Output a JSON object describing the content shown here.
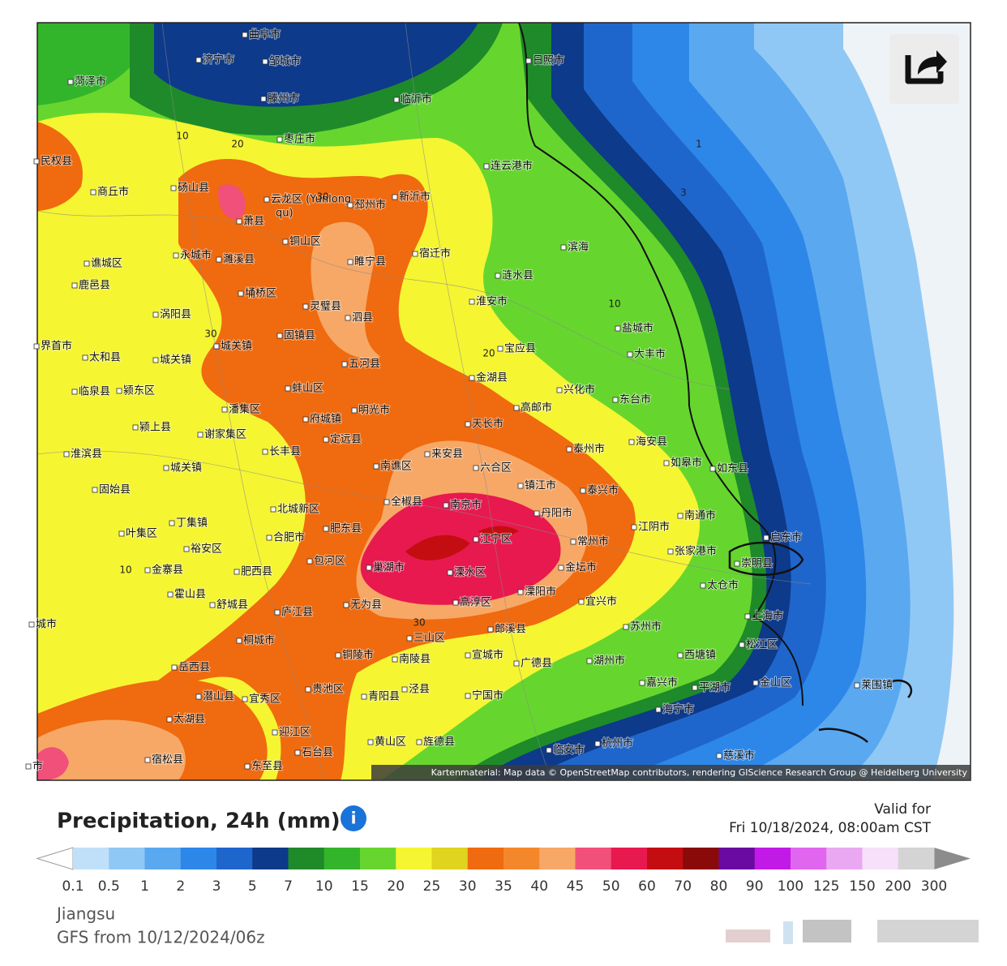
{
  "map": {
    "cities": [
      "曲阜市",
      "济宁市",
      "邹城市",
      "菏泽市",
      "滕州市",
      "临沂市",
      "日照市",
      "枣庄市",
      "民权县",
      "连云港市",
      "商丘市",
      "砀山县",
      "云龙区 (Yunlong",
      "qu)",
      "萧县",
      "邳州市",
      "新沂市",
      "铜山区",
      "永城市",
      "濉溪县",
      "睢宁县",
      "宿迁市",
      "谯城区",
      "鹿邑县",
      "涟水县",
      "滨海",
      "埇桥区",
      "灵璧县",
      "泗县",
      "淮安市",
      "盐城市",
      "涡阳县",
      "固镇县",
      "界首市",
      "太和县",
      "城关镇",
      "城关镇",
      "五河县",
      "宝应县",
      "大丰市",
      "金湖县",
      "临泉县",
      "颍东区",
      "蚌山区",
      "明光市",
      "兴化市",
      "东台市",
      "潘集区",
      "府城镇",
      "天长市",
      "高邮市",
      "颍上县",
      "谢家集区",
      "定远县",
      "泰州市",
      "海安县",
      "淮滨县",
      "长丰县",
      "来安县",
      "如皋市",
      "南谯区",
      "六合区",
      "如东县",
      "城关镇",
      "固始县",
      "镇江市",
      "泰兴市",
      "全椒县",
      "南京市",
      "北城新区",
      "丹阳市",
      "南通市",
      "叶集区",
      "丁集镇",
      "合肥市",
      "肥东县",
      "江宁区",
      "常州市",
      "江阴市",
      "启东市",
      "裕安区",
      "包河区",
      "巢湖市",
      "张家港市",
      "金坛市",
      "崇明县",
      "金寨县",
      "肥西县",
      "溧水区",
      "太仓市",
      "霍山县",
      "舒城县",
      "庐江县",
      "无为县",
      "高淳区",
      "溧阳市",
      "宜兴市",
      "上海市",
      "城市",
      "苏州市",
      "郎溪县",
      "桐城市",
      "三山区",
      "松江区",
      "宣城市",
      "铜陵市",
      "湖州市",
      "广德县",
      "南陵县",
      "嘉兴市",
      "岳西县",
      "西塘镇",
      "平湖市",
      "金山区",
      "莱围镇",
      "贵池区",
      "宜秀区",
      "潜山县",
      "青阳县",
      "泾县",
      "宁国市",
      "海宁市",
      "太湖县",
      "迎江区",
      "黄山区",
      "旌德县",
      "临安市",
      "杭州市",
      "宿松县",
      "东至县",
      "石台县",
      "慈溪市",
      "市"
    ],
    "contour_labels": [
      "10",
      "20",
      "30",
      "1",
      "3",
      "10",
      "20",
      "30",
      "10",
      "30"
    ],
    "attribution": "Kartenmaterial: Map data © OpenStreetMap contributors, rendering GIScience Research Group @ Heidelberg University"
  },
  "legend": {
    "title": "Precipitation, 24h (mm)",
    "valid_label": "Valid for",
    "valid_time": "Fri 10/18/2024, 08:00am CST",
    "levels": [
      0.1,
      0.5,
      1,
      2,
      3,
      5,
      7,
      10,
      15,
      20,
      25,
      30,
      35,
      40,
      45,
      50,
      60,
      70,
      80,
      90,
      100,
      125,
      150,
      200,
      300
    ],
    "colors": [
      "#c0e0fa",
      "#90c8f5",
      "#5aa8f0",
      "#2d87e8",
      "#1f66cc",
      "#0d3a8a",
      "#1f8a2a",
      "#33b52b",
      "#66d62e",
      "#f5f532",
      "#e0d41f",
      "#f06a0f",
      "#f5872b",
      "#f7a866",
      "#f0507a",
      "#e8194f",
      "#c40d10",
      "#8a0a0a",
      "#6a0aa0",
      "#c21ae6",
      "#e066f0",
      "#eaa8f2",
      "#f6e0fa",
      "#d4d4d4"
    ],
    "under_color": "#ffffff",
    "over_color": "#8c8c8c"
  },
  "footer": {
    "region": "Jiangsu",
    "model": "GFS from 10/12/2024/06z"
  }
}
